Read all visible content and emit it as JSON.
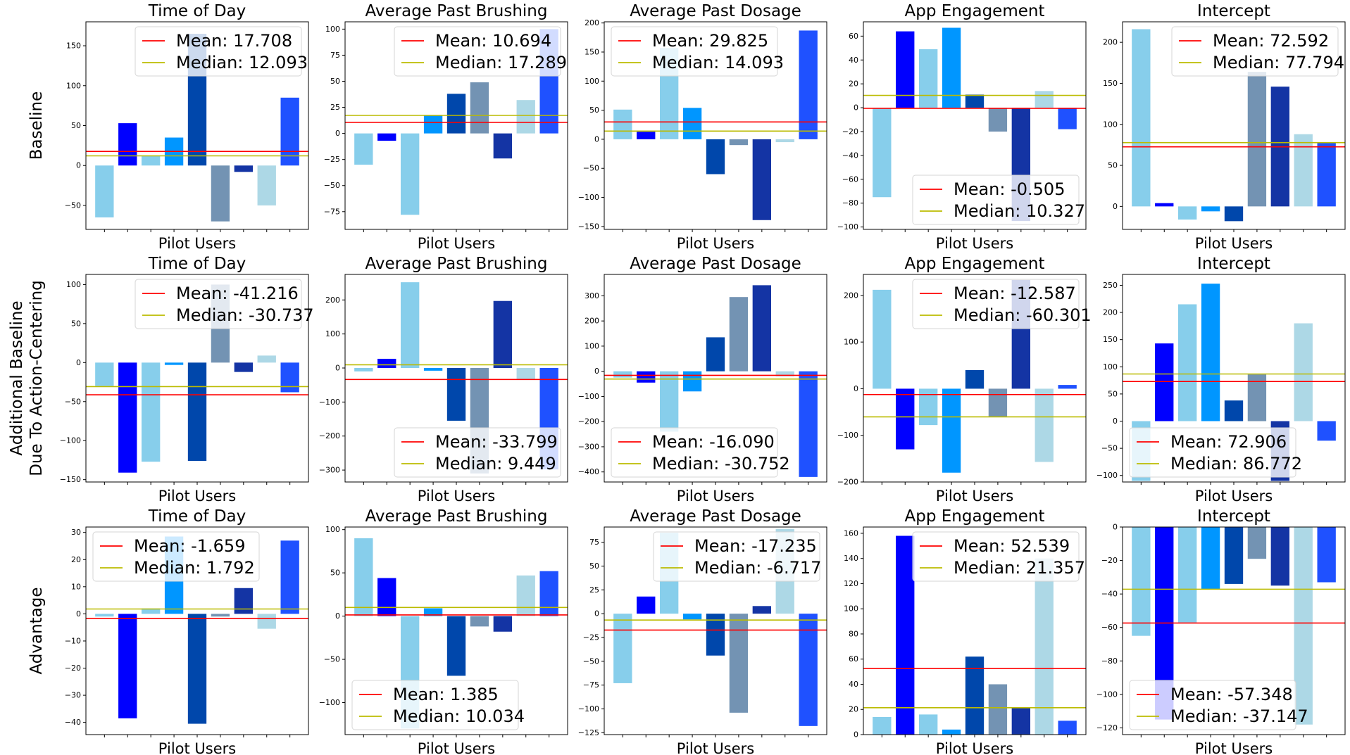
{
  "row_labels": [
    [
      "Baseline"
    ],
    [
      "Additional Baseline",
      "Due To Action-Centering"
    ],
    [
      "Advantage"
    ]
  ],
  "colors": [
    "#87CEEB",
    "#0000FF",
    "#87CEEB",
    "#0096FF",
    "#0047AB",
    "#7393B3",
    "#1434A4",
    "#ADD8E6",
    "#1F51FF"
  ],
  "mean_color": "#FF0000",
  "median_color": "#BBBB00",
  "chart_data": [
    {
      "type": "bar",
      "title": "Time of Day",
      "xlabel": "Pilot Users",
      "ylim": [
        -80,
        180
      ],
      "yticks": [
        -50,
        0,
        50,
        100,
        150
      ],
      "values": [
        -65,
        53,
        12,
        35,
        165,
        -70,
        -8,
        -50,
        85
      ],
      "mean": 17.708,
      "median": 12.093,
      "mean_label": "Mean: 17.708",
      "median_label": "Median: 12.093",
      "legend": "top-right"
    },
    {
      "type": "bar",
      "title": "Average Past Brushing",
      "xlabel": "Pilot Users",
      "ylim": [
        -92,
        107
      ],
      "yticks": [
        -75,
        -50,
        -25,
        0,
        25,
        50,
        75,
        100
      ],
      "values": [
        -30,
        -7,
        -78,
        17,
        38,
        49,
        -24,
        32,
        100
      ],
      "mean": 10.694,
      "median": 17.289,
      "mean_label": "Mean: 10.694",
      "median_label": "Median: 17.289",
      "legend": "top-right"
    },
    {
      "type": "bar",
      "title": "Average Past Dosage",
      "xlabel": "Pilot Users",
      "ylim": [
        -155,
        202
      ],
      "yticks": [
        -150,
        -100,
        -50,
        0,
        50,
        100,
        150,
        200
      ],
      "values": [
        51,
        13,
        157,
        54,
        -60,
        -10,
        -139,
        -5,
        187
      ],
      "mean": 29.825,
      "median": 14.093,
      "mean_label": "Mean: 29.825",
      "median_label": "Median: 14.093",
      "legend": "top-left"
    },
    {
      "type": "bar",
      "title": "App Engagement",
      "xlabel": "Pilot Users",
      "ylim": [
        -102,
        72
      ],
      "yticks": [
        -100,
        -80,
        -60,
        -40,
        -20,
        0,
        20,
        40,
        60
      ],
      "values": [
        -75,
        64,
        49,
        67,
        11,
        -20,
        -95,
        14,
        -18
      ],
      "mean": -0.505,
      "median": 10.327,
      "mean_label": "Mean: -0.505",
      "median_label": "Median: 10.327",
      "legend": "bottom-right"
    },
    {
      "type": "bar",
      "title": "Intercept",
      "xlabel": "Pilot Users",
      "ylim": [
        -28,
        225
      ],
      "yticks": [
        0,
        50,
        100,
        150,
        200
      ],
      "values": [
        216,
        4,
        -16,
        -6,
        -18,
        164,
        146,
        88,
        78
      ],
      "mean": 72.592,
      "median": 77.794,
      "mean_label": "Mean: 72.592",
      "median_label": "Median: 77.794",
      "legend": "top-right"
    },
    {
      "type": "bar",
      "title": "Time of Day",
      "xlabel": "Pilot Users",
      "ylim": [
        -153,
        113
      ],
      "yticks": [
        -150,
        -100,
        -50,
        0,
        50,
        100
      ],
      "values": [
        -30,
        -141,
        -127,
        -3,
        -126,
        100,
        -12,
        9,
        -38
      ],
      "mean": -41.216,
      "median": -30.737,
      "mean_label": "Mean: -41.216",
      "median_label": "Median: -30.737",
      "legend": "top-right"
    },
    {
      "type": "bar",
      "title": "Average Past Brushing",
      "xlabel": "Pilot Users",
      "ylim": [
        -335,
        275
      ],
      "yticks": [
        -300,
        -200,
        -100,
        0,
        100,
        200
      ],
      "values": [
        -10,
        27,
        252,
        -8,
        -155,
        -310,
        197,
        -35,
        -298
      ],
      "mean": -33.799,
      "median": 9.449,
      "mean_label": "Mean: -33.799",
      "median_label": "Median: 9.449",
      "legend": "bottom-right"
    },
    {
      "type": "bar",
      "title": "Average Past Dosage",
      "xlabel": "Pilot Users",
      "ylim": [
        -440,
        385
      ],
      "yticks": [
        -400,
        -300,
        -200,
        -100,
        0,
        100,
        200,
        300
      ],
      "values": [
        -25,
        -45,
        -240,
        -80,
        135,
        295,
        342,
        -20,
        -420
      ],
      "mean": -16.09,
      "median": -30.752,
      "mean_label": "Mean: -16.090",
      "median_label": "Median: -30.752",
      "legend": "bottom-left"
    },
    {
      "type": "bar",
      "title": "App Engagement",
      "xlabel": "Pilot Users",
      "ylim": [
        -200,
        245
      ],
      "yticks": [
        -200,
        -100,
        0,
        100,
        200
      ],
      "values": [
        212,
        -130,
        -78,
        -180,
        40,
        -60,
        233,
        -157,
        8
      ],
      "mean": -12.587,
      "median": -60.301,
      "mean_label": "Mean: -12.587",
      "median_label": "Median: -60.301",
      "legend": "top-right"
    },
    {
      "type": "bar",
      "title": "Intercept",
      "xlabel": "Pilot Users",
      "ylim": [
        -112,
        270
      ],
      "yticks": [
        -100,
        -50,
        0,
        50,
        100,
        150,
        200,
        250
      ],
      "values": [
        -110,
        143,
        215,
        253,
        38,
        86,
        -110,
        180,
        -36
      ],
      "mean": 72.906,
      "median": 86.772,
      "mean_label": "Mean: 72.906",
      "median_label": "Median: 86.772",
      "legend": "bottom-left"
    },
    {
      "type": "bar",
      "title": "Time of Day",
      "xlabel": "Pilot Users",
      "ylim": [
        -44.5,
        32
      ],
      "yticks": [
        -40,
        -30,
        -20,
        -10,
        0,
        10,
        20,
        30
      ],
      "values": [
        -1,
        -38.5,
        2,
        28.5,
        -40.5,
        -1,
        9.5,
        -5.5,
        27
      ],
      "mean": -1.659,
      "median": 1.792,
      "mean_label": "Mean: -1.659",
      "median_label": "Median: 1.792",
      "legend": "top-left"
    },
    {
      "type": "bar",
      "title": "Average Past Brushing",
      "xlabel": "Pilot Users",
      "ylim": [
        -137,
        103
      ],
      "yticks": [
        -100,
        -50,
        0,
        50,
        100
      ],
      "values": [
        90,
        44,
        -130,
        9,
        -69,
        -12,
        -18,
        47,
        52
      ],
      "mean": 1.385,
      "median": 10.034,
      "mean_label": "Mean: 1.385",
      "median_label": "Median: 10.034",
      "legend": "bottom-left"
    },
    {
      "type": "bar",
      "title": "Average Past Dosage",
      "xlabel": "Pilot Users",
      "ylim": [
        -127,
        91
      ],
      "yticks": [
        -125,
        -100,
        -75,
        -50,
        -25,
        0,
        25,
        50,
        75
      ],
      "values": [
        -73,
        18,
        85,
        -6,
        -44,
        -104,
        8,
        89,
        -118
      ],
      "mean": -17.235,
      "median": -6.717,
      "mean_label": "Mean: -17.235",
      "median_label": "Median: -6.717",
      "legend": "top-right"
    },
    {
      "type": "bar",
      "title": "App Engagement",
      "xlabel": "Pilot Users",
      "ylim": [
        0,
        165
      ],
      "yticks": [
        0,
        20,
        40,
        60,
        80,
        100,
        120,
        140,
        160
      ],
      "values": [
        14,
        158,
        16,
        4,
        62,
        40,
        21,
        140,
        11
      ],
      "mean": 52.539,
      "median": 21.357,
      "mean_label": "Mean: 52.539",
      "median_label": "Median: 21.357",
      "legend": "top-right"
    },
    {
      "type": "bar",
      "title": "Intercept",
      "xlabel": "Pilot Users",
      "ylim": [
        -124,
        0
      ],
      "yticks": [
        -120,
        -100,
        -80,
        -60,
        -40,
        -20,
        0
      ],
      "values": [
        -65,
        -115,
        -57,
        -37,
        -34,
        -19,
        -35,
        -118,
        -33
      ],
      "mean": -57.348,
      "median": -37.147,
      "mean_label": "Mean: -57.348",
      "median_label": "Median: -37.147",
      "legend": "bottom-left"
    }
  ]
}
